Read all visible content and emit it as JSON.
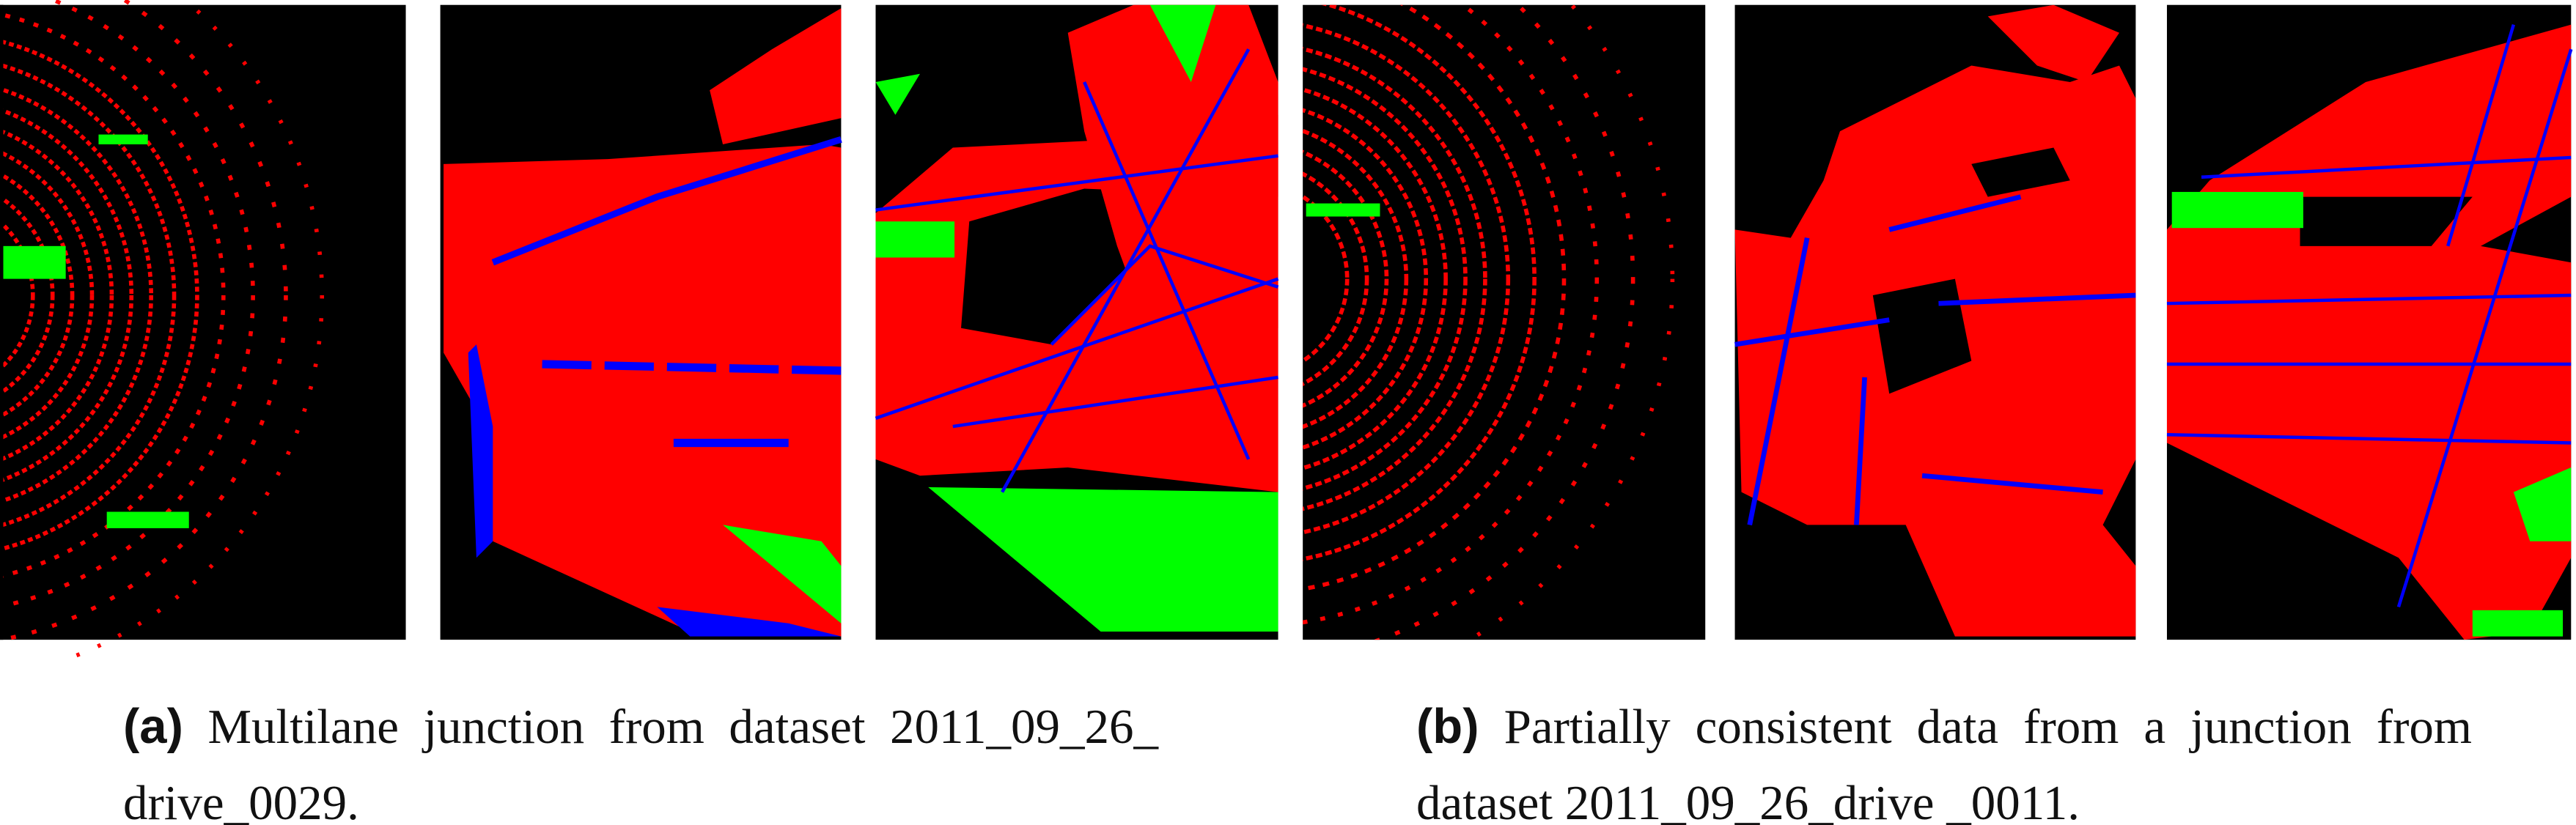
{
  "captions": [
    {
      "label": "(a)",
      "text": "Multilane junction from dataset 2011_09_26_ drive_0029."
    },
    {
      "label": "(b)",
      "text": "Partially consistent data from a junction from dataset 2011_09_26_drive _0011."
    }
  ]
}
